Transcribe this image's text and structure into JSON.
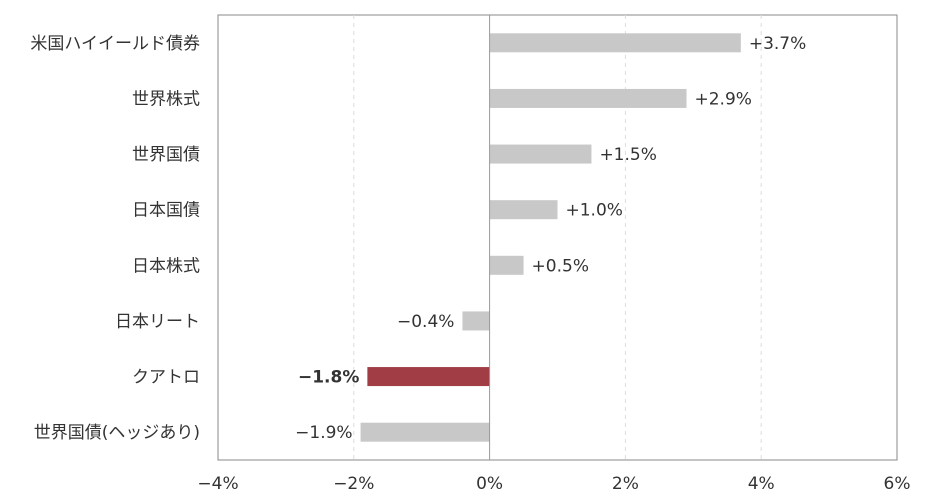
{
  "chart_data": {
    "type": "bar",
    "orientation": "horizontal",
    "categories": [
      "米国ハイイールド債券",
      "世界株式",
      "世界国債",
      "日本国債",
      "日本株式",
      "日本リート",
      "クアトロ",
      "世界国債(ヘッジあり)"
    ],
    "values": [
      3.7,
      2.9,
      1.5,
      1.0,
      0.5,
      -0.4,
      -1.8,
      -1.9
    ],
    "data_labels": [
      "+3.7%",
      "+2.9%",
      "+1.5%",
      "+1.0%",
      "+0.5%",
      "−0.4%",
      "−1.8%",
      "−1.9%"
    ],
    "highlight_index": 6,
    "xlim": [
      -4,
      6
    ],
    "xticks": [
      -4,
      -2,
      0,
      2,
      4,
      6
    ],
    "xtick_labels": [
      "−4%",
      "−2%",
      "0%",
      "2%",
      "4%",
      "6%"
    ],
    "grid": "vertical-dashed",
    "legend": "none",
    "title": "",
    "xlabel": "",
    "ylabel": "",
    "colors": {
      "bar": "#c8c8c8",
      "highlight_bar": "#a13d45",
      "highlight_label": "#a13d45",
      "grid": "#dddddd",
      "axis": "#888888",
      "zero_line": "#999999"
    }
  }
}
